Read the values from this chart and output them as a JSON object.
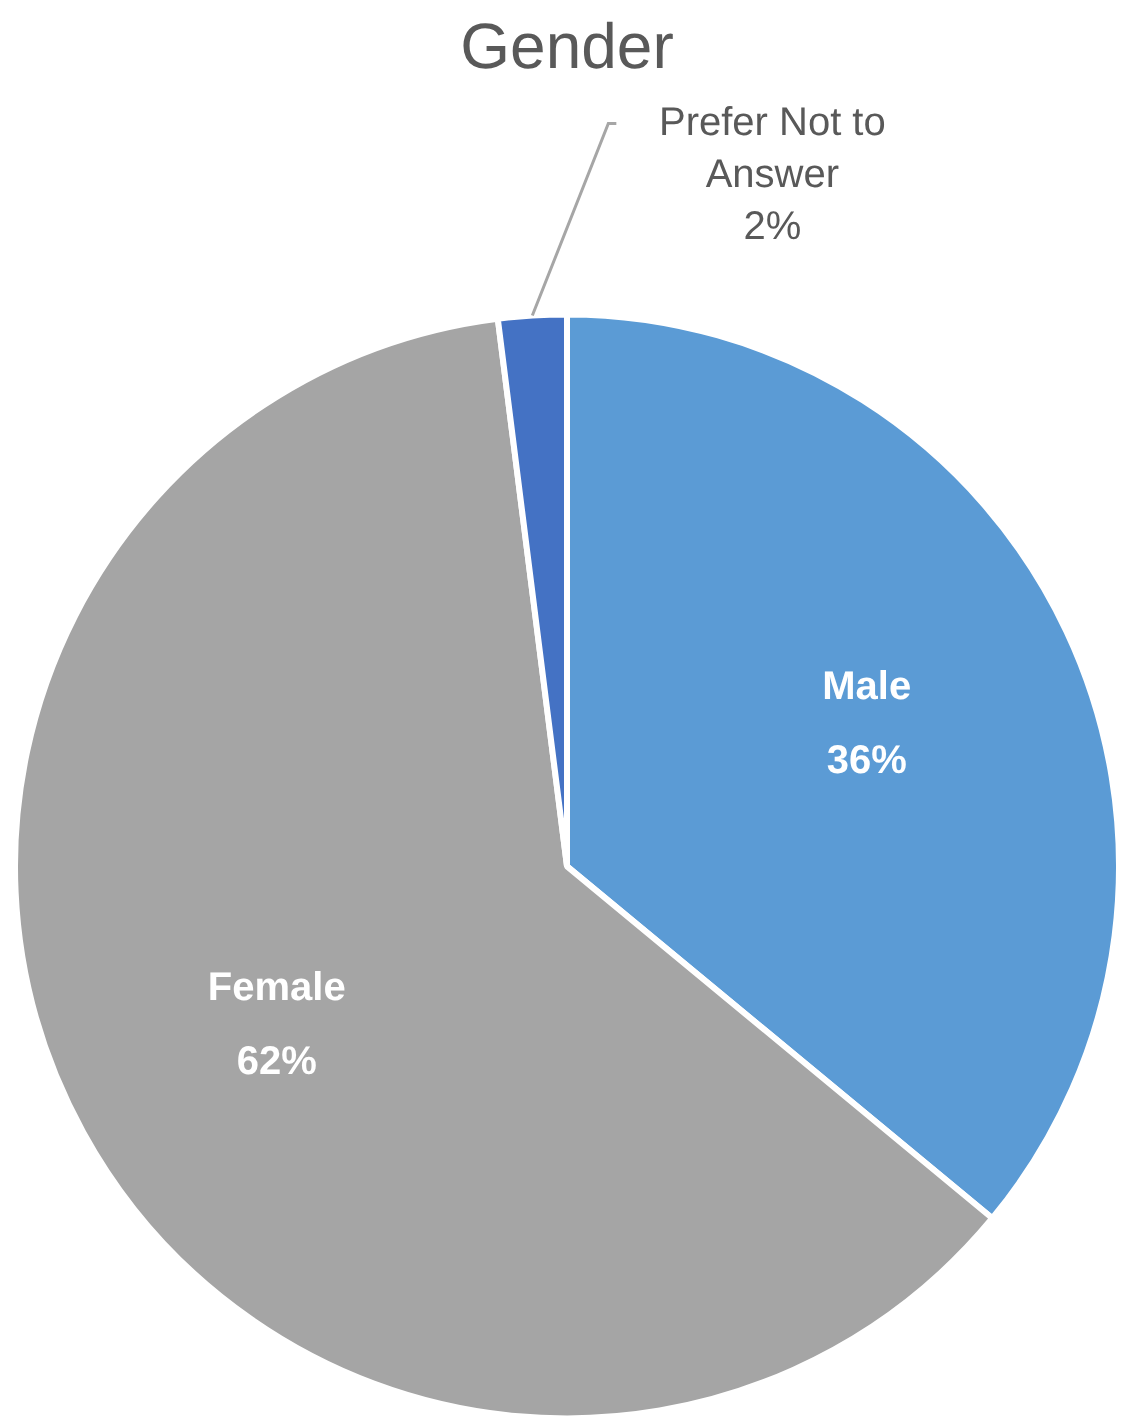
{
  "chart_data": {
    "type": "pie",
    "title": "Gender",
    "categories": [
      "Male",
      "Female",
      "Prefer Not to Answer"
    ],
    "values": [
      36,
      62,
      2
    ],
    "colors": [
      "#5b9bd5",
      "#a5a5a5",
      "#4472c4"
    ],
    "value_labels": [
      "36%",
      "62%",
      "2%"
    ],
    "legend": false
  }
}
